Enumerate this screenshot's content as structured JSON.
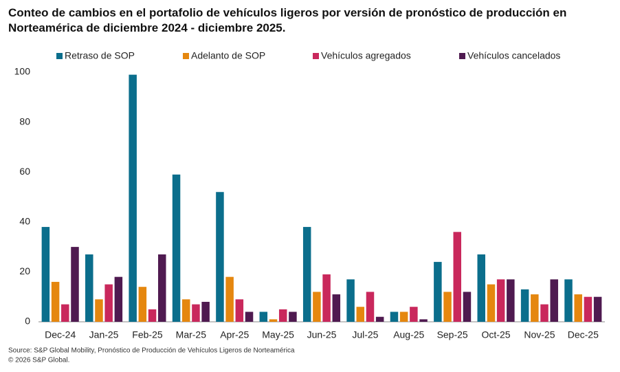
{
  "chart_data": {
    "type": "bar",
    "title": "Conteo de cambios en el portafolio de vehículos ligeros por versión de pronóstico de producción en Norteamérica de diciembre 2024 - diciembre 2025.",
    "categories": [
      "Dec-24",
      "Jan-25",
      "Feb-25",
      "Mar-25",
      "Apr-25",
      "May-25",
      "Jun-25",
      "Jul-25",
      "Aug-25",
      "Sep-25",
      "Oct-25",
      "Nov-25",
      "Dec-25"
    ],
    "series": [
      {
        "name": "Retraso de SOP",
        "color": "#0b6e8c",
        "values": [
          38,
          27,
          99,
          59,
          52,
          4,
          38,
          17,
          4,
          24,
          27,
          13,
          17
        ]
      },
      {
        "name": "Adelanto de SOP",
        "color": "#e5870f",
        "values": [
          16,
          9,
          14,
          9,
          18,
          1,
          12,
          6,
          4,
          12,
          15,
          11,
          11
        ]
      },
      {
        "name": "Vehículos agregados",
        "color": "#c9285c",
        "values": [
          7,
          15,
          5,
          7,
          9,
          5,
          19,
          12,
          6,
          36,
          17,
          7,
          10
        ]
      },
      {
        "name": "Vehículos cancelados",
        "color": "#4f1a50",
        "values": [
          30,
          18,
          27,
          8,
          4,
          4,
          11,
          2,
          1,
          12,
          17,
          17,
          10
        ]
      }
    ],
    "ylim": [
      0,
      100
    ],
    "yticks": [
      0,
      20,
      40,
      60,
      80,
      100
    ],
    "grid": false,
    "legend": "top",
    "source": "Source: S&P Global Mobility, Pronóstico de Producción de Vehículos Ligeros de Norteamérica",
    "copyright": "© 2026 S&P Global."
  }
}
